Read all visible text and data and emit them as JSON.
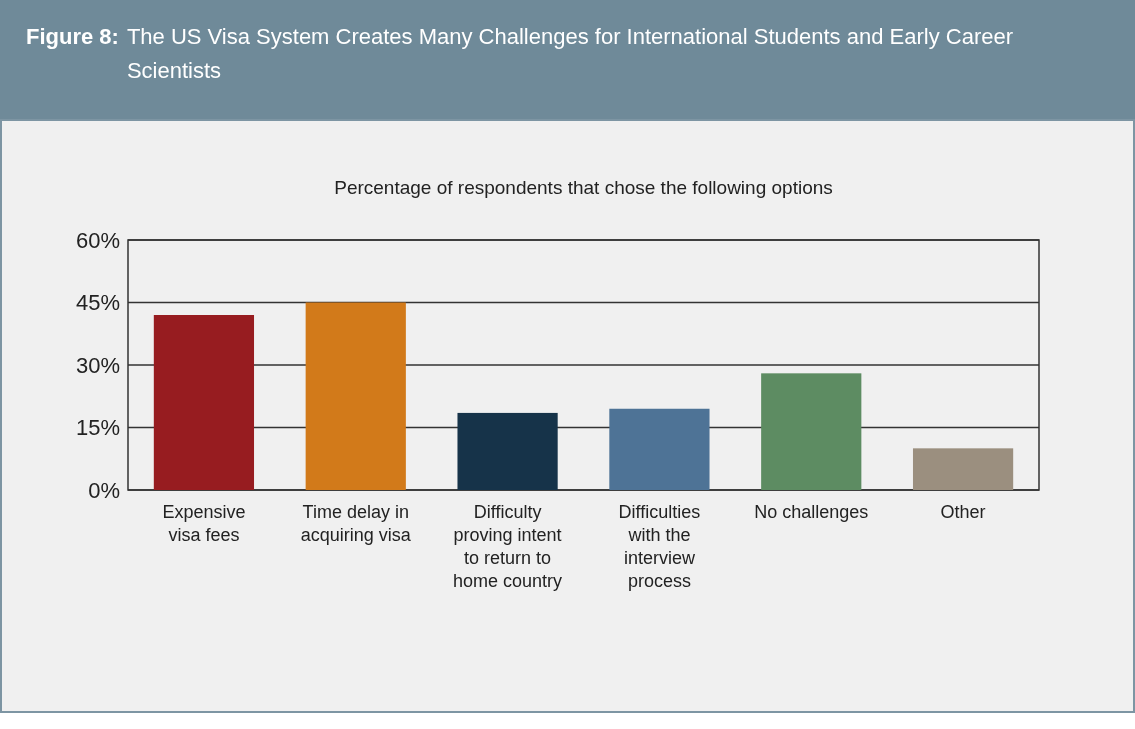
{
  "chart_data": {
    "type": "bar",
    "title": "Figure 8: The US Visa System Creates Many Challenges for International Students and Early Career Scientists",
    "subtitle": "Percentage of respondents that chose the following options",
    "categories": [
      "Expensive visa fees",
      "Time delay in acquiring visa",
      "Difficulty proving intent to return to home country",
      "Difficulties with the interview process",
      "No challenges",
      "Other"
    ],
    "values": [
      42,
      45,
      18.5,
      19.5,
      28,
      10
    ],
    "colors": [
      "#971c20",
      "#d27a1a",
      "#163349",
      "#4e7396",
      "#5d8c62",
      "#9b8f7f"
    ],
    "ylim": [
      0,
      60
    ],
    "yticks": [
      {
        "value": 0,
        "label": "0%"
      },
      {
        "value": 15,
        "label": "15%"
      },
      {
        "value": 30,
        "label": "30%"
      },
      {
        "value": 45,
        "label": "45%"
      },
      {
        "value": 60,
        "label": "60%"
      }
    ],
    "grid": "y"
  }
}
